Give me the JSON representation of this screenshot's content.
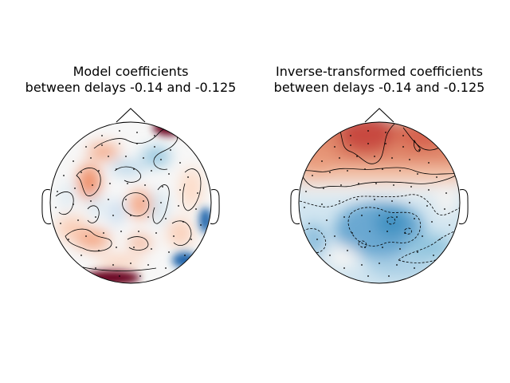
{
  "chart_data": [
    {
      "type": "heatmap",
      "subtype": "EEG scalp topomap",
      "title_line1": "Model coefficients",
      "title_line2": "between delays -0.14 and -0.125",
      "colormap": "RdBu_r",
      "contours": true,
      "sensor_markers": true,
      "pattern": "mixed swirling positive/negative regions; strong positive at frontal-right and occipital-left, strong negative at posterior-right edge"
    },
    {
      "type": "heatmap",
      "subtype": "EEG scalp topomap",
      "title_line1": "Inverse-transformed coefficients",
      "title_line2": "between delays -0.14 and -0.125",
      "colormap": "RdBu_r",
      "contours": true,
      "sensor_markers": true,
      "pattern": "positive (red) over frontal region, negative (blue) over central/posterior region"
    }
  ],
  "colors": {
    "pos_strong": "#67001f",
    "pos": "#d6604d",
    "pos_light": "#f4a582",
    "neutral": "#f7f7f7",
    "neg_light": "#92c5de",
    "neg": "#4393c3",
    "neg_strong": "#2166ac"
  }
}
